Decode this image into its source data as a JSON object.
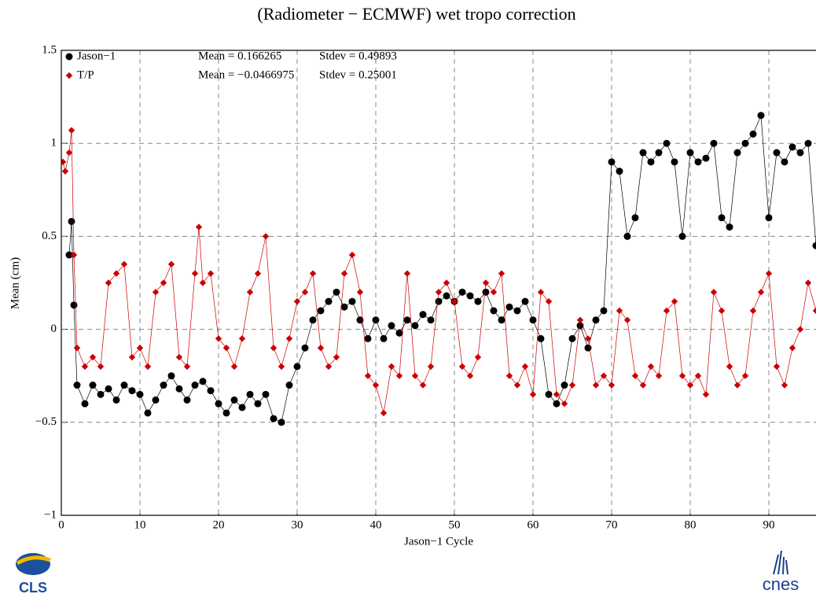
{
  "chart_data": {
    "type": "line",
    "title": "(Radiometer − ECMWF) wet tropo correction",
    "xlabel": "Jason−1 Cycle",
    "ylabel": "Mean (cm)",
    "xlim": [
      0,
      96
    ],
    "ylim": [
      -1,
      1.5
    ],
    "xticks": [
      0,
      10,
      20,
      30,
      40,
      50,
      60,
      70,
      80,
      90
    ],
    "yticks": [
      {
        "value": -1,
        "label": "−1"
      },
      {
        "value": -0.5,
        "label": "−0.5"
      },
      0,
      0.5,
      1,
      1.5
    ],
    "grid": true,
    "legend": "upper left",
    "logos": [
      "CLS",
      "cnes"
    ],
    "series": [
      {
        "name": "Jason−1",
        "color": "#000000",
        "marker": "circle",
        "mean_text": "Mean = 0.166265",
        "stdev_text": "Stdev = 0.49893",
        "x": [
          1,
          1.3,
          1.6,
          2,
          3,
          4,
          5,
          6,
          7,
          8,
          9,
          10,
          11,
          12,
          13,
          14,
          15,
          16,
          17,
          18,
          19,
          20,
          21,
          22,
          23,
          24,
          25,
          26,
          27,
          28,
          29,
          30,
          31,
          32,
          33,
          34,
          35,
          36,
          37,
          38,
          39,
          40,
          41,
          42,
          43,
          44,
          45,
          46,
          47,
          48,
          49,
          50,
          51,
          52,
          53,
          54,
          55,
          56,
          57,
          58,
          59,
          60,
          61,
          62,
          63,
          64,
          65,
          66,
          67,
          68,
          69,
          70,
          71,
          72,
          73,
          74,
          75,
          76,
          77,
          78,
          79,
          80,
          81,
          82,
          83,
          84,
          85,
          86,
          87,
          88,
          89,
          90,
          91,
          92,
          93,
          94,
          95,
          96
        ],
        "values": [
          0.4,
          0.58,
          0.13,
          -0.3,
          -0.4,
          -0.3,
          -0.35,
          -0.32,
          -0.38,
          -0.3,
          -0.33,
          -0.35,
          -0.45,
          -0.38,
          -0.3,
          -0.25,
          -0.32,
          -0.38,
          -0.3,
          -0.28,
          -0.33,
          -0.4,
          -0.45,
          -0.38,
          -0.42,
          -0.35,
          -0.4,
          -0.35,
          -0.48,
          -0.5,
          -0.3,
          -0.2,
          -0.1,
          0.05,
          0.1,
          0.15,
          0.2,
          0.12,
          0.15,
          0.05,
          -0.05,
          0.05,
          -0.05,
          0.02,
          -0.02,
          0.05,
          0.02,
          0.08,
          0.05,
          0.15,
          0.18,
          0.15,
          0.2,
          0.18,
          0.15,
          0.2,
          0.1,
          0.05,
          0.12,
          0.1,
          0.15,
          0.05,
          -0.05,
          -0.35,
          -0.4,
          -0.3,
          -0.05,
          0.02,
          -0.1,
          0.05,
          0.1,
          0.9,
          0.85,
          0.5,
          0.6,
          0.95,
          0.9,
          0.95,
          1.0,
          0.9,
          0.5,
          0.95,
          0.9,
          0.92,
          1.0,
          0.6,
          0.55,
          0.95,
          1.0,
          1.05,
          1.15,
          0.6,
          0.95,
          0.9,
          0.98,
          0.95,
          1.0,
          0.45
        ]
      },
      {
        "name": "T/P",
        "color": "#cc0000",
        "marker": "diamond",
        "mean_text": "Mean = −0.0466975",
        "stdev_text": "Stdev = 0.25001",
        "x": [
          0.2,
          0.5,
          1,
          1.3,
          1.6,
          2,
          3,
          4,
          5,
          6,
          7,
          8,
          9,
          10,
          11,
          12,
          13,
          14,
          15,
          16,
          17,
          17.5,
          18,
          19,
          20,
          21,
          22,
          23,
          24,
          25,
          26,
          27,
          28,
          29,
          30,
          31,
          32,
          33,
          34,
          35,
          36,
          37,
          38,
          39,
          40,
          41,
          42,
          43,
          44,
          45,
          46,
          47,
          48,
          49,
          50,
          51,
          52,
          53,
          54,
          55,
          56,
          57,
          58,
          59,
          60,
          61,
          62,
          63,
          64,
          65,
          66,
          67,
          68,
          69,
          70,
          71,
          72,
          73,
          74,
          75,
          76,
          77,
          78,
          79,
          80,
          81,
          82,
          83,
          84,
          85,
          86,
          87,
          88,
          89,
          90,
          91,
          92,
          93,
          94,
          95,
          96
        ],
        "values": [
          0.9,
          0.85,
          0.95,
          1.07,
          0.4,
          -0.1,
          -0.2,
          -0.15,
          -0.2,
          0.25,
          0.3,
          0.35,
          -0.15,
          -0.1,
          -0.2,
          0.2,
          0.25,
          0.35,
          -0.15,
          -0.2,
          0.3,
          0.55,
          0.25,
          0.3,
          -0.05,
          -0.1,
          -0.2,
          -0.05,
          0.2,
          0.3,
          0.5,
          -0.1,
          -0.2,
          -0.05,
          0.15,
          0.2,
          0.3,
          -0.1,
          -0.2,
          -0.15,
          0.3,
          0.4,
          0.2,
          -0.25,
          -0.3,
          -0.45,
          -0.2,
          -0.25,
          0.3,
          -0.25,
          -0.3,
          -0.2,
          0.2,
          0.25,
          0.15,
          -0.2,
          -0.25,
          -0.15,
          0.25,
          0.2,
          0.3,
          -0.25,
          -0.3,
          -0.2,
          -0.35,
          0.2,
          0.15,
          -0.35,
          -0.4,
          -0.3,
          0.05,
          -0.05,
          -0.3,
          -0.25,
          -0.3,
          0.1,
          0.05,
          -0.25,
          -0.3,
          -0.2,
          -0.25,
          0.1,
          0.15,
          -0.25,
          -0.3,
          -0.25,
          -0.35,
          0.2,
          0.1,
          -0.2,
          -0.3,
          -0.25,
          0.1,
          0.2,
          0.3,
          -0.2,
          -0.3,
          -0.1,
          0,
          0.25,
          0.1
        ]
      }
    ]
  }
}
